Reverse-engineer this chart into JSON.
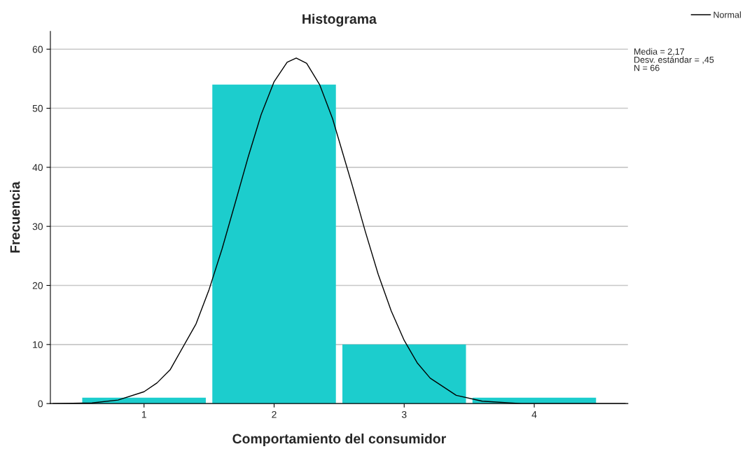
{
  "chart_data": {
    "type": "histogram",
    "title": "Histograma",
    "xlabel": "Comportamiento del consumidor",
    "ylabel": "Frecuencia",
    "bins": [
      0.5,
      1.5,
      2.5,
      3.5,
      4.5
    ],
    "values": [
      1,
      54,
      10,
      1
    ],
    "color": "#1ccdcd",
    "series": [
      {
        "type": "line",
        "name": "Normal",
        "color": "#000000",
        "x": [
          0.3,
          0.6,
          0.8,
          1.0,
          1.1,
          1.2,
          1.4,
          1.5,
          1.6,
          1.7,
          1.8,
          1.9,
          2.0,
          2.1,
          2.17,
          2.25,
          2.35,
          2.45,
          2.6,
          2.7,
          2.8,
          2.9,
          3.0,
          3.1,
          3.2,
          3.4,
          3.6,
          3.9,
          4.2,
          4.7
        ],
        "values": [
          0,
          0.1,
          0.6,
          2.0,
          3.5,
          5.7,
          13.5,
          19.3,
          26.2,
          33.9,
          41.7,
          48.9,
          54.5,
          57.8,
          58.5,
          57.6,
          54.0,
          48.2,
          37.0,
          29.2,
          21.9,
          15.7,
          10.7,
          6.9,
          4.3,
          1.4,
          0.4,
          0,
          0,
          0
        ]
      }
    ],
    "annotations": [
      "Media = 2,17",
      "Desv. estándar = ,45",
      "N = 66"
    ],
    "xlim": [
      0.28,
      4.72
    ],
    "xticks": [
      1,
      2,
      3,
      4
    ],
    "ylim": [
      0,
      63
    ],
    "yticks": [
      0,
      10,
      20,
      30,
      40,
      50,
      60
    ],
    "grid": "y",
    "legend": "top right"
  }
}
